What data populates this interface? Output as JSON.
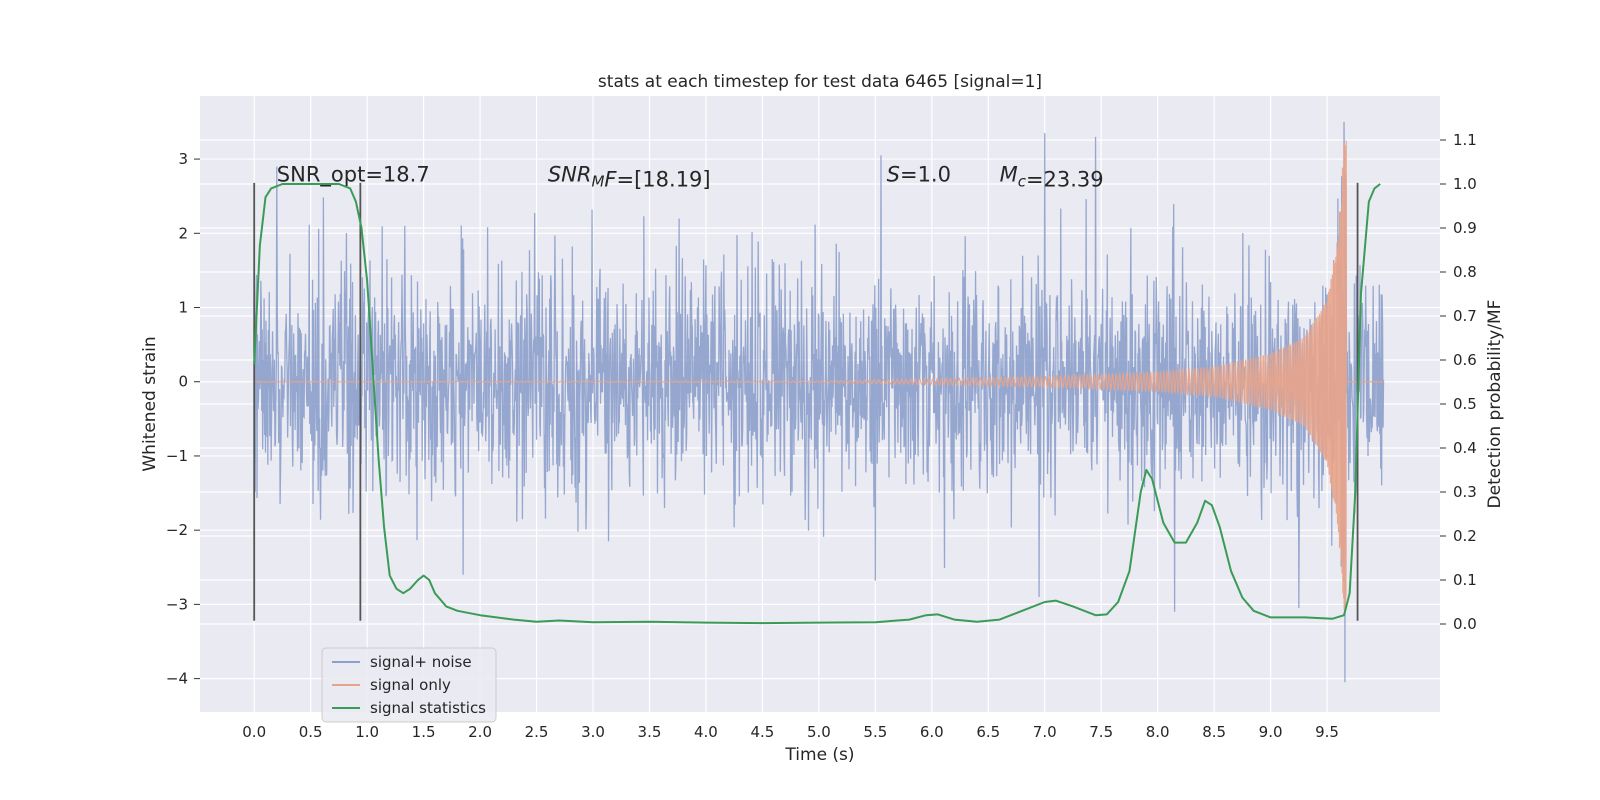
{
  "chart_data": {
    "type": "line",
    "title": "stats at each timestep for test data 6465 [signal=1]",
    "xlabel": "Time (s)",
    "ylabel_left": "Whitened strain",
    "ylabel_right": "Detection probability/MF",
    "xlim": [
      -0.48,
      10.5
    ],
    "ylim_left": [
      -4.45,
      3.85
    ],
    "ylim_right": [
      -0.2,
      1.2
    ],
    "x_ticks": [
      0.0,
      0.5,
      1.0,
      1.5,
      2.0,
      2.5,
      3.0,
      3.5,
      4.0,
      4.5,
      5.0,
      5.5,
      6.0,
      6.5,
      7.0,
      7.5,
      8.0,
      8.5,
      9.0,
      9.5
    ],
    "x_tick_labels": [
      "0.0",
      "0.5",
      "1.0",
      "1.5",
      "2.0",
      "2.5",
      "3.0",
      "3.5",
      "4.0",
      "4.5",
      "5.0",
      "5.5",
      "6.0",
      "6.5",
      "7.0",
      "7.5",
      "8.0",
      "8.5",
      "9.0",
      "9.5"
    ],
    "y_left_ticks": [
      3,
      2,
      1,
      0,
      -1,
      -2,
      -3,
      -4
    ],
    "y_left_tick_labels": [
      "3",
      "2",
      "1",
      "0",
      "−1",
      "−2",
      "−3",
      "−4"
    ],
    "y_right_ticks": [
      1.1,
      1.0,
      0.9,
      0.8,
      0.7,
      0.6,
      0.5,
      0.4,
      0.3,
      0.2,
      0.1,
      0.0
    ],
    "y_right_tick_labels": [
      "1.1",
      "1.0",
      "0.9",
      "0.8",
      "0.7",
      "0.6",
      "0.5",
      "0.4",
      "0.3",
      "0.2",
      "0.1",
      "0.0"
    ],
    "grid": true,
    "legend_position": "lower-left",
    "annotations": [
      {
        "id": "snr-opt",
        "x": 0.2,
        "y": 2.7,
        "text": "SNR_opt=18.7",
        "math": false
      },
      {
        "id": "snr-mf",
        "x": 2.6,
        "y": 2.7,
        "base": "SNR",
        "sub": "M",
        "after": "F=[18.19]",
        "math": true
      },
      {
        "id": "s-value",
        "x": 5.6,
        "y": 2.7,
        "base": "S",
        "sub": "",
        "after": "=1.0",
        "math": true
      },
      {
        "id": "mc-value",
        "x": 6.6,
        "y": 2.7,
        "base": "M",
        "sub": "c",
        "after": "=23.39",
        "math": true
      }
    ],
    "vertical_markers": [
      {
        "x": 0.0,
        "y_top": 2.68,
        "y_bottom": -3.22
      },
      {
        "x": 0.94,
        "y_top": 2.68,
        "y_bottom": -3.22
      },
      {
        "x": 9.77,
        "y_top": 2.68,
        "y_bottom": -3.22
      }
    ],
    "series": [
      {
        "name": "signal+ noise",
        "axis": "left",
        "color": "#8da0cb",
        "kind": "noise",
        "x_range": [
          0.0,
          10.0
        ],
        "noise_std": 0.75,
        "extremes": [
          {
            "x": 0.2,
            "y": 2.9
          },
          {
            "x": 1.85,
            "y": -2.6
          },
          {
            "x": 5.5,
            "y": -2.68
          },
          {
            "x": 5.55,
            "y": 3.05
          },
          {
            "x": 6.95,
            "y": -2.9
          },
          {
            "x": 7.0,
            "y": 3.35
          },
          {
            "x": 7.45,
            "y": 3.3
          },
          {
            "x": 8.15,
            "y": -3.1
          },
          {
            "x": 9.25,
            "y": -3.05
          },
          {
            "x": 9.65,
            "y": 3.5
          },
          {
            "x": 9.66,
            "y": -4.05
          }
        ]
      },
      {
        "name": "signal only",
        "axis": "left",
        "color": "#e8a48a",
        "kind": "chirp",
        "x_range": [
          0.0,
          10.0
        ],
        "t_merge": 9.67,
        "envelope": [
          [
            0.0,
            0.0
          ],
          [
            5.0,
            0.01
          ],
          [
            6.0,
            0.04
          ],
          [
            7.0,
            0.07
          ],
          [
            8.0,
            0.13
          ],
          [
            8.5,
            0.2
          ],
          [
            9.0,
            0.38
          ],
          [
            9.3,
            0.6
          ],
          [
            9.5,
            1.1
          ],
          [
            9.6,
            2.0
          ],
          [
            9.65,
            3.25
          ],
          [
            9.67,
            3.25
          ]
        ]
      },
      {
        "name": "signal statistics",
        "axis": "right",
        "color": "#3a9b57",
        "kind": "line",
        "points": [
          [
            0.0,
            0.59
          ],
          [
            0.05,
            0.86
          ],
          [
            0.1,
            0.97
          ],
          [
            0.15,
            0.99
          ],
          [
            0.25,
            1.0
          ],
          [
            0.5,
            1.0
          ],
          [
            0.75,
            1.0
          ],
          [
            0.85,
            0.99
          ],
          [
            0.9,
            0.96
          ],
          [
            0.95,
            0.9
          ],
          [
            1.0,
            0.78
          ],
          [
            1.05,
            0.58
          ],
          [
            1.1,
            0.38
          ],
          [
            1.15,
            0.22
          ],
          [
            1.2,
            0.11
          ],
          [
            1.26,
            0.08
          ],
          [
            1.32,
            0.07
          ],
          [
            1.38,
            0.08
          ],
          [
            1.45,
            0.1
          ],
          [
            1.5,
            0.11
          ],
          [
            1.55,
            0.1
          ],
          [
            1.6,
            0.07
          ],
          [
            1.7,
            0.04
          ],
          [
            1.8,
            0.03
          ],
          [
            2.0,
            0.02
          ],
          [
            2.3,
            0.01
          ],
          [
            2.5,
            0.005
          ],
          [
            2.7,
            0.008
          ],
          [
            3.0,
            0.004
          ],
          [
            3.5,
            0.005
          ],
          [
            4.0,
            0.003
          ],
          [
            4.5,
            0.002
          ],
          [
            5.0,
            0.003
          ],
          [
            5.5,
            0.004
          ],
          [
            5.8,
            0.01
          ],
          [
            5.95,
            0.02
          ],
          [
            6.05,
            0.022
          ],
          [
            6.2,
            0.01
          ],
          [
            6.4,
            0.005
          ],
          [
            6.6,
            0.01
          ],
          [
            6.8,
            0.03
          ],
          [
            7.0,
            0.05
          ],
          [
            7.1,
            0.053
          ],
          [
            7.25,
            0.04
          ],
          [
            7.45,
            0.02
          ],
          [
            7.55,
            0.022
          ],
          [
            7.65,
            0.05
          ],
          [
            7.75,
            0.12
          ],
          [
            7.85,
            0.3
          ],
          [
            7.9,
            0.35
          ],
          [
            7.95,
            0.33
          ],
          [
            8.05,
            0.23
          ],
          [
            8.15,
            0.185
          ],
          [
            8.25,
            0.185
          ],
          [
            8.35,
            0.23
          ],
          [
            8.42,
            0.28
          ],
          [
            8.48,
            0.27
          ],
          [
            8.55,
            0.22
          ],
          [
            8.65,
            0.12
          ],
          [
            8.75,
            0.06
          ],
          [
            8.85,
            0.03
          ],
          [
            9.0,
            0.015
          ],
          [
            9.3,
            0.015
          ],
          [
            9.55,
            0.012
          ],
          [
            9.65,
            0.02
          ],
          [
            9.7,
            0.07
          ],
          [
            9.75,
            0.3
          ],
          [
            9.8,
            0.75
          ],
          [
            9.87,
            0.96
          ],
          [
            9.92,
            0.99
          ],
          [
            9.97,
            1.0
          ]
        ]
      }
    ]
  }
}
